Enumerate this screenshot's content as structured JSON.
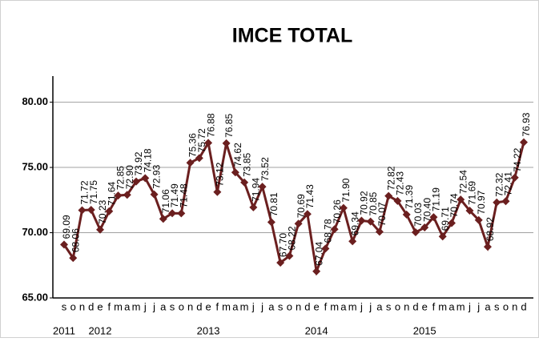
{
  "chart_data": {
    "type": "line",
    "title": "IMCE TOTAL",
    "categories": [
      "s",
      "o",
      "n",
      "d",
      "e",
      "f",
      "m",
      "a",
      "m",
      "j",
      "j",
      "a",
      "s",
      "o",
      "n",
      "d",
      "e",
      "f",
      "m",
      "a",
      "m",
      "j",
      "j",
      "a",
      "s",
      "o",
      "n",
      "d",
      "e",
      "f",
      "m",
      "a",
      "m",
      "j",
      "j",
      "a",
      "s",
      "o",
      "n",
      "d",
      "e",
      "f",
      "m",
      "a",
      "m",
      "j",
      "j",
      "a",
      "s",
      "o",
      "n",
      "d"
    ],
    "x_groups": [
      {
        "label": "2011",
        "count": 4
      },
      {
        "label": "2012",
        "count": 12
      },
      {
        "label": "2013",
        "count": 12
      },
      {
        "label": "2014",
        "count": 12
      },
      {
        "label": "2015",
        "count": 12
      }
    ],
    "series": [
      {
        "name": "IMCE TOTAL",
        "color": "#6b1f1f",
        "values": [
          69.09,
          68.06,
          71.72,
          71.75,
          70.23,
          71.64,
          72.85,
          72.9,
          73.92,
          74.18,
          72.93,
          71.06,
          71.49,
          71.48,
          75.36,
          75.72,
          76.88,
          73.12,
          76.85,
          74.62,
          73.85,
          71.94,
          73.52,
          70.81,
          67.7,
          68.22,
          70.69,
          71.43,
          67.04,
          68.78,
          70.26,
          71.9,
          69.34,
          70.92,
          70.85,
          70.07,
          72.82,
          72.43,
          71.39,
          70.03,
          70.4,
          71.19,
          69.71,
          70.74,
          72.54,
          71.69,
          70.97,
          68.92,
          72.32,
          72.41,
          74.22,
          76.93
        ],
        "value_labels": [
          "69.09",
          "68.06",
          "71.72",
          "71.75",
          "70.23",
          "71.64",
          "72.85",
          "72.90",
          "73.92",
          "74.18",
          "72.93",
          "71.06",
          "71.49",
          "71.48",
          "75.36",
          "75.72",
          "76.88",
          "73.12",
          "76.85",
          "74.62",
          "73.85",
          "71.94",
          "73.52",
          "70.81",
          "67.70",
          "68.22",
          "70.69",
          "71.43",
          "67.04",
          "68.78",
          "70.26",
          "71.90",
          "69.34",
          "70.92",
          "70.85",
          "70.07",
          "72.82",
          "72.43",
          "71.39",
          "70.03",
          "70.40",
          "71.19",
          "69.71",
          "70.74",
          "72.54",
          "71.69",
          "70.97",
          "68.92",
          "72.32",
          "72.41",
          "74.22",
          "76.93"
        ]
      }
    ],
    "ylim": [
      65,
      82
    ],
    "yticks": [
      {
        "value": 65,
        "label": "65.00"
      },
      {
        "value": 70,
        "label": "70.00"
      },
      {
        "value": 75,
        "label": "75.00"
      },
      {
        "value": 80,
        "label": "80.00"
      }
    ],
    "grid": true
  }
}
